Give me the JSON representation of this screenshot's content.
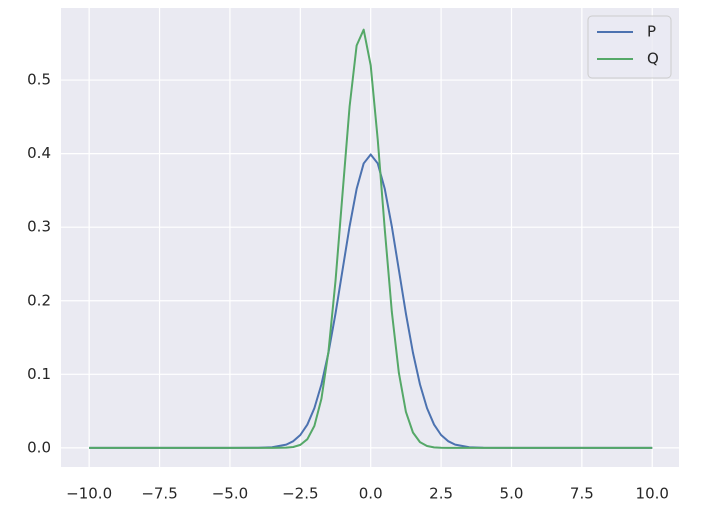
{
  "chart_data": {
    "type": "line",
    "x": [
      -10,
      -5,
      -4,
      -3.5,
      -3,
      -2.75,
      -2.5,
      -2.25,
      -2,
      -1.75,
      -1.5,
      -1.25,
      -1,
      -0.75,
      -0.5,
      -0.25,
      0,
      0.25,
      0.5,
      0.75,
      1,
      1.25,
      1.5,
      1.75,
      2,
      2.25,
      2.5,
      2.75,
      3,
      3.5,
      4,
      5,
      10
    ],
    "series": [
      {
        "name": "P",
        "color": "#4c72b0",
        "values": [
          0,
          0,
          0.0001,
          0.0009,
          0.0044,
          0.0091,
          0.0175,
          0.0317,
          0.054,
          0.0863,
          0.1295,
          0.1826,
          0.242,
          0.3011,
          0.3521,
          0.3867,
          0.3989,
          0.3867,
          0.3521,
          0.3011,
          0.242,
          0.1826,
          0.1295,
          0.0863,
          0.054,
          0.0317,
          0.0175,
          0.0091,
          0.0044,
          0.0009,
          0.0001,
          0,
          0
        ]
      },
      {
        "name": "Q",
        "color": "#55a868",
        "values": [
          0,
          0,
          0,
          0,
          0.0003,
          0.0012,
          0.0041,
          0.0118,
          0.0299,
          0.0667,
          0.131,
          0.227,
          0.346,
          0.464,
          0.547,
          0.5685,
          0.52,
          0.419,
          0.297,
          0.185,
          0.102,
          0.0491,
          0.0209,
          0.0078,
          0.0026,
          0.0007,
          0.0002,
          0,
          0,
          0,
          0,
          0,
          0
        ]
      }
    ],
    "xlim": [
      -11,
      10.95
    ],
    "ylim": [
      -0.026,
      0.598
    ],
    "xticks": [
      {
        "value": -10,
        "label": "−10.0"
      },
      {
        "value": -7.5,
        "label": "−7.5"
      },
      {
        "value": -5,
        "label": "−5.0"
      },
      {
        "value": -2.5,
        "label": "−2.5"
      },
      {
        "value": 0,
        "label": "0.0"
      },
      2.5,
      {
        "value": 5,
        "label": "5.0"
      },
      7.5,
      {
        "value": 10,
        "label": "10.0"
      }
    ],
    "yticks": [
      {
        "value": 0,
        "label": "0.0"
      },
      0.1,
      0.2,
      0.3,
      0.4,
      0.5
    ],
    "grid": true,
    "legend": "upper right"
  }
}
